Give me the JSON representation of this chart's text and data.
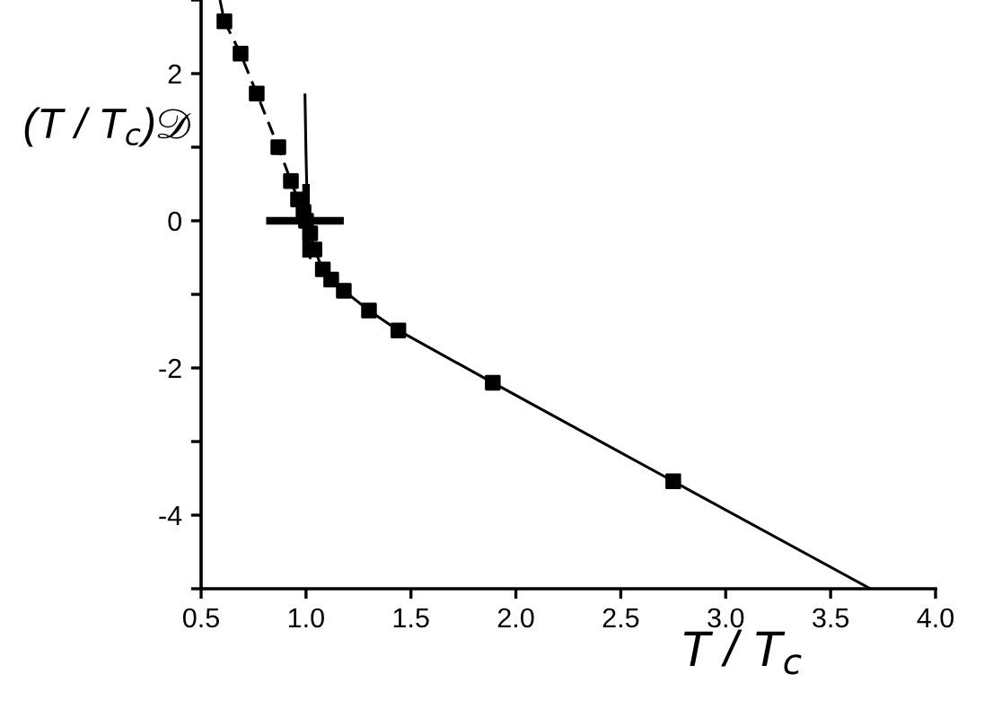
{
  "chart_data": {
    "type": "line",
    "xlabel": "T / T$_{c}$",
    "ylabel": "(T / T$_{c}$)𝒟",
    "xlim": [
      0.5,
      4.0
    ],
    "xticks": [
      0.5,
      {
        "value": 1,
        "label": "1.0"
      },
      1.5,
      {
        "value": 2,
        "label": "2.0"
      },
      2.5,
      {
        "value": 3,
        "label": "3.0"
      },
      3.5,
      {
        "value": 4,
        "label": "4.0"
      }
    ],
    "ylim": [
      -5,
      3
    ],
    "yticks": [
      {
        "value": -5,
        "label": null
      },
      -4,
      {
        "value": -3,
        "label": null
      },
      -2,
      {
        "value": -1,
        "label": null
      },
      0,
      {
        "value": 1,
        "label": null
      },
      2,
      {
        "value": 3,
        "label": null
      }
    ],
    "grid": false,
    "legend": false,
    "series": [
      {
        "color": "#000000",
        "line_style": "dashed",
        "marker": "none",
        "x": [
          0.59,
          0.611,
          0.688,
          0.765,
          0.868,
          0.928,
          0.962,
          0.988,
          1.005
        ],
        "values": [
          3.0,
          2.71,
          2.27,
          1.73,
          1.0,
          0.54,
          0.29,
          0.12,
          -0.02
        ]
      },
      {
        "color": "#000000",
        "line_style": "solid",
        "marker": "none",
        "x": [
          1.005,
          1.02,
          1.04,
          1.08,
          1.12,
          1.18,
          1.3,
          1.44,
          1.89,
          2.75,
          3.69
        ],
        "values": [
          -0.02,
          -0.17,
          -0.39,
          -0.66,
          -0.8,
          -0.95,
          -1.22,
          -1.49,
          -2.2,
          -3.54,
          -5.0
        ]
      },
      {
        "color": "#000000",
        "line_style": "solid",
        "marker": "none",
        "x": [
          0.995,
          1.0,
          1.005,
          1.01,
          1.015,
          1.02
        ],
        "values": [
          1.71,
          0.9,
          0.3,
          -0.1,
          -0.35,
          -0.5
        ]
      },
      {
        "type": "scatter",
        "color": "#000000",
        "marker": "square",
        "x": [
          0.611,
          0.688,
          0.765,
          0.868,
          0.928,
          0.962,
          0.988,
          1.02,
          1.04,
          1.08,
          1.12,
          1.18,
          1.3,
          1.44,
          1.89,
          2.75
        ],
        "values": [
          2.71,
          2.27,
          1.73,
          1.0,
          0.54,
          0.29,
          0.12,
          -0.17,
          -0.39,
          -0.66,
          -0.8,
          -0.95,
          -1.22,
          -1.49,
          -2.2,
          -3.54
        ]
      },
      {
        "type": "scatter",
        "color": "#000000",
        "marker": "square",
        "x": [
          1.0
        ],
        "values": [
          0.0
        ],
        "errors": [
          [
            -0.5,
            0.5
          ]
        ],
        "xerrors": [
          [
            0.81,
            1.18
          ]
        ]
      }
    ]
  }
}
